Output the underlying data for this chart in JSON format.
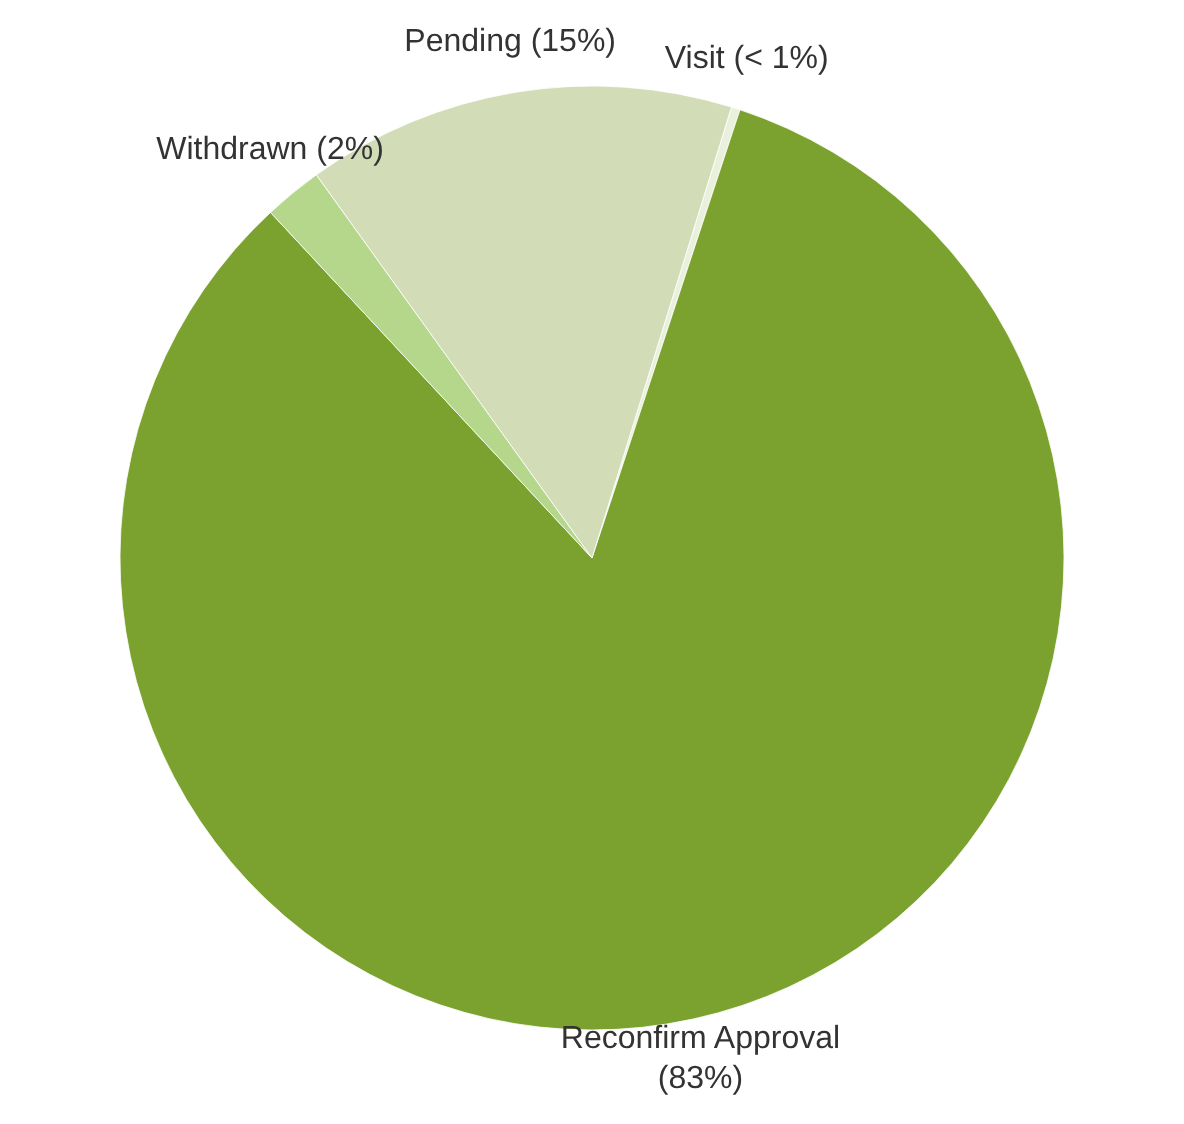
{
  "chart_data": {
    "type": "pie",
    "categories": [
      "Visit",
      "Reconfirm Approval",
      "Withdrawn",
      "Pending"
    ],
    "values": [
      0.3,
      83,
      2,
      14.7
    ],
    "colors": [
      "#eaf0dc",
      "#7ba22f",
      "#b4d78c",
      "#d2ddb8"
    ],
    "value_labels": [
      "(< 1%)",
      "(83%)",
      "(2%)",
      "(15%)"
    ]
  }
}
